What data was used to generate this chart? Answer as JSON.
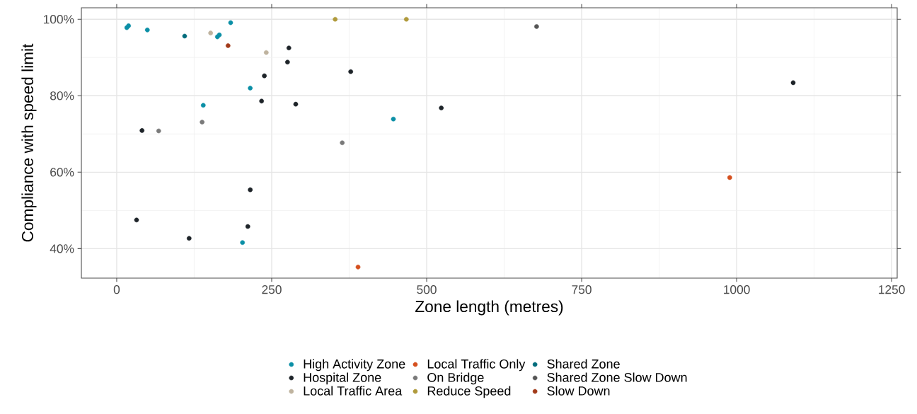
{
  "chart_data": {
    "type": "scatter",
    "xlabel": "Zone length (metres)",
    "ylabel": "Compliance with speed limit",
    "xlim": [
      -57,
      1259
    ],
    "ylim": [
      32.3,
      103
    ],
    "xticks": [
      0,
      250,
      500,
      750,
      1000,
      1250
    ],
    "yticks": [
      {
        "value": 40,
        "label": "40%"
      },
      {
        "value": 60,
        "label": "60%"
      },
      {
        "value": 80,
        "label": "80%"
      },
      {
        "value": 100,
        "label": "100%"
      }
    ],
    "grid": true,
    "legend": "bottom",
    "marker": "circle",
    "series": [
      {
        "name": "High Activity Zone",
        "color": "#0b8fa6",
        "x": [
          16.3,
          19.1,
          49.4,
          162.4,
          165.5,
          183.8,
          215.4,
          139.6,
          446.3,
          202.9
        ],
        "values": [
          97.8,
          98.3,
          97.2,
          95.4,
          95.9,
          99.1,
          82,
          77.5,
          73.9,
          41.6
        ]
      },
      {
        "name": "Hospital Zone",
        "color": "#1e2429",
        "x": [
          277.7,
          275.5,
          377.5,
          238.2,
          233.7,
          288.8,
          40.8,
          215.4,
          32,
          211.5,
          116.8,
          523.6,
          1091.2
        ],
        "values": [
          92.5,
          88.8,
          86.3,
          85.2,
          78.6,
          77.8,
          70.9,
          55.4,
          47.5,
          45.8,
          42.7,
          76.8,
          83.4
        ]
      },
      {
        "name": "Local Traffic Area",
        "color": "#bfb39f",
        "x": [
          151.5,
          241.2
        ],
        "values": [
          96.4,
          91.3
        ]
      },
      {
        "name": "Local Traffic Only",
        "color": "#d5501e",
        "x": [
          389.3,
          988.9
        ],
        "values": [
          35.2,
          58.6
        ]
      },
      {
        "name": "On Bridge",
        "color": "#7a7a7a",
        "x": [
          137.8,
          67.7,
          363.8
        ],
        "values": [
          73.1,
          70.8,
          67.7
        ]
      },
      {
        "name": "Reduce Speed",
        "color": "#b09a3c",
        "x": [
          352.4,
          467.2
        ],
        "values": [
          100,
          100
        ]
      },
      {
        "name": "Shared Zone",
        "color": "#036c7c",
        "x": [
          109.6
        ],
        "values": [
          95.6
        ]
      },
      {
        "name": "Shared Zone Slow Down",
        "color": "#555555",
        "x": [
          677.3
        ],
        "values": [
          98.1
        ]
      },
      {
        "name": "Slow Down",
        "color": "#a23b1a",
        "x": [
          179.6
        ],
        "values": [
          93.1
        ]
      }
    ]
  }
}
